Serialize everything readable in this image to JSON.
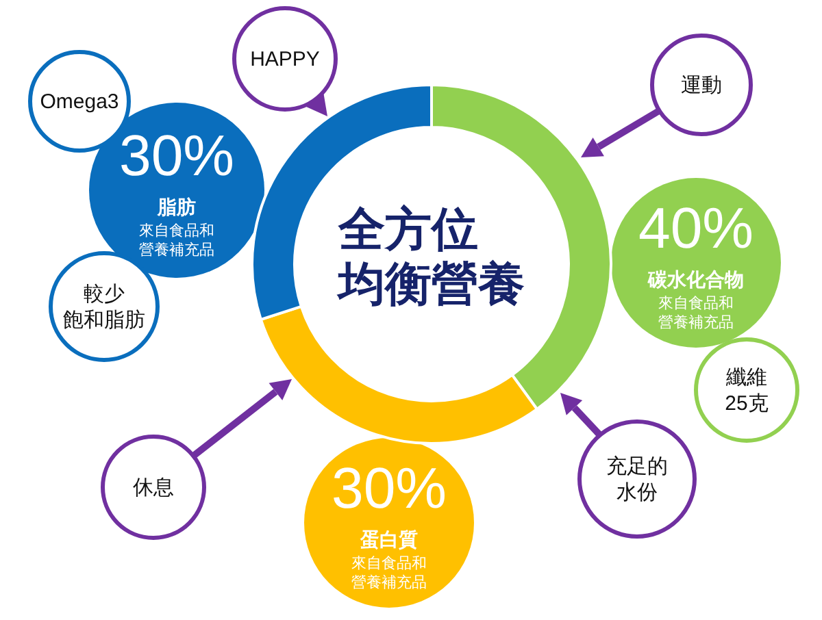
{
  "chart_data": {
    "type": "donut",
    "title": "全方位均衡營養",
    "categories": [
      "碳水化合物",
      "蛋白質",
      "脂肪"
    ],
    "values": [
      40,
      30,
      30
    ],
    "colors": [
      "#92d050",
      "#ffc000",
      "#0a6ebd"
    ],
    "value_labels": [
      "40%",
      "30%",
      "30%"
    ],
    "annotations": [
      "來自食品和營養補充品",
      "來自食品和營養補充品",
      "來自食品和營養補充品",
      "Omega3",
      "HAPPY",
      "運動",
      "較少飽和脂肪",
      "纖維25克",
      "充足的水份",
      "休息"
    ]
  }
}
